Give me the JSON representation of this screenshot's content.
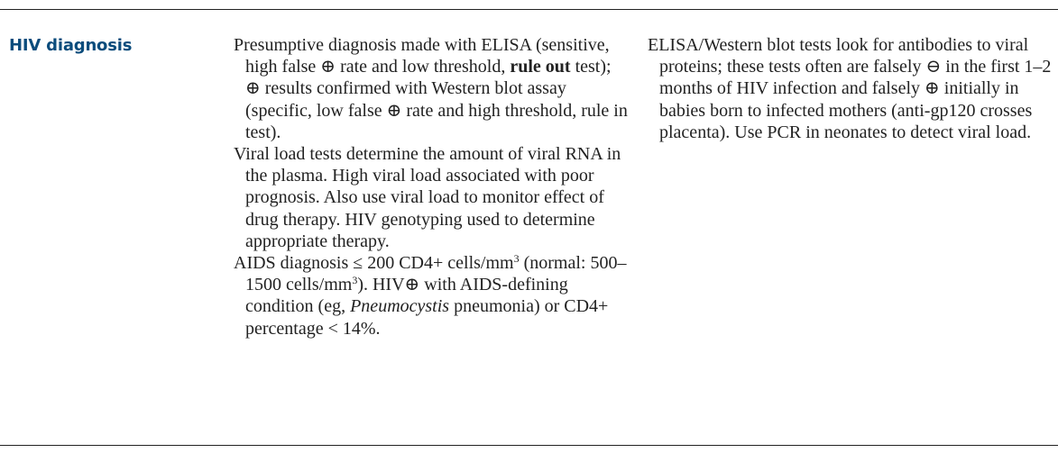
{
  "heading": "HIV diagnosis",
  "middle": {
    "p1": {
      "a": "Presumptive diagnosis made with ELISA (sensitive, high false ⊕ rate and low threshold, ",
      "b": "rule out",
      "c": " test); ⊕ results confirmed with Western blot assay (specific, low false ⊕ rate and high threshold, rule in test)."
    },
    "p2": "Viral load tests determine the amount of viral RNA in the plasma. High viral load associated with poor prognosis. Also use viral load to monitor effect of drug therapy. HIV genotyping used to determine appropriate therapy.",
    "p3": {
      "a": "AIDS diagnosis ≤ 200 CD4+ cells/mm",
      "sup1": "3",
      "b": " (normal: 500–1500 cells/mm",
      "sup2": "3",
      "c": "). HIV⊕ with AIDS-defining condition (eg, ",
      "d": "Pneumocystis",
      "e": " pneumonia) or CD4+ percentage < 14%."
    }
  },
  "right": {
    "p1": "ELISA/Western blot tests look for antibodies to viral proteins; these tests often are falsely ⊖ in the first 1–2 months of HIV infection and falsely ⊕ initially in babies born to infected mothers (anti-gp120 crosses placenta). Use PCR in neonates to detect viral load."
  }
}
